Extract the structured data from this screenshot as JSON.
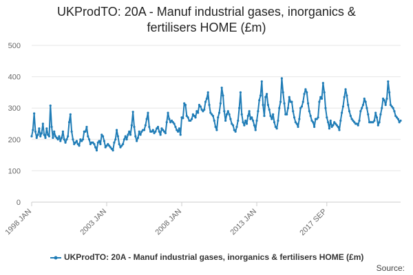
{
  "chart_data": {
    "type": "line",
    "title_lines": [
      "UKProdTO: 20A - Manuf industrial gases, inorganics &",
      "fertilisers HOME (£m)"
    ],
    "xlabel": "",
    "ylabel": "",
    "x_tick_labels": [
      "1998 JAN",
      "2003 JAN",
      "2008 JAN",
      "2013 JAN",
      "2017 SEP"
    ],
    "x_start": "1998-01",
    "x_end": "2017-09",
    "y_ticks": [
      0,
      100,
      200,
      300,
      400,
      500
    ],
    "ylim": [
      0,
      500
    ],
    "grid": true,
    "legend_position": "bottom",
    "series": [
      {
        "name": "UKProdTO: 20A - Manuf industrial gases, inorganics & fertilisers HOME (£m)",
        "color": "#1f7cb6",
        "values": [
          210,
          230,
          283,
          225,
          205,
          215,
          235,
          210,
          220,
          250,
          215,
          205,
          235,
          215,
          210,
          308,
          240,
          205,
          225,
          210,
          205,
          200,
          210,
          195,
          205,
          225,
          200,
          190,
          200,
          210,
          255,
          280,
          225,
          200,
          185,
          190,
          195,
          185,
          180,
          200,
          195,
          200,
          225,
          225,
          240,
          210,
          200,
          185,
          190,
          190,
          185,
          175,
          165,
          190,
          195,
          185,
          215,
          210,
          195,
          175,
          180,
          185,
          180,
          175,
          170,
          165,
          190,
          200,
          230,
          210,
          185,
          175,
          180,
          185,
          200,
          210,
          200,
          215,
          225,
          215,
          245,
          288,
          240,
          210,
          195,
          205,
          225,
          215,
          225,
          230,
          230,
          245,
          265,
          285,
          240,
          225,
          225,
          230,
          220,
          225,
          235,
          240,
          225,
          215,
          235,
          230,
          225,
          220,
          255,
          285,
          265,
          255,
          260,
          255,
          250,
          240,
          230,
          225,
          235,
          215,
          270,
          268,
          315,
          310,
          275,
          270,
          260,
          260,
          265,
          280,
          275,
          270,
          290,
          285,
          310,
          305,
          295,
          290,
          295,
          320,
          330,
          350,
          310,
          285,
          280,
          275,
          260,
          240,
          230,
          270,
          285,
          315,
          365,
          340,
          290,
          260,
          280,
          290,
          280,
          265,
          250,
          245,
          230,
          225,
          240,
          260,
          300,
          350,
          280,
          255,
          245,
          260,
          250,
          275,
          290,
          265,
          270,
          260,
          245,
          230,
          260,
          290,
          325,
          340,
          385,
          310,
          275,
          335,
          345,
          310,
          295,
          275,
          265,
          280,
          255,
          240,
          235,
          260,
          300,
          320,
          395,
          350,
          315,
          280,
          280,
          300,
          335,
          320,
          320,
          290,
          270,
          255,
          250,
          240,
          265,
          300,
          305,
          320,
          345,
          360,
          350,
          315,
          290,
          275,
          260,
          255,
          240,
          265,
          265,
          270,
          320,
          335,
          330,
          380,
          350,
          300,
          270,
          255,
          235,
          260,
          240,
          245,
          255,
          250,
          245,
          240,
          230,
          260,
          285,
          305,
          335,
          360,
          340,
          310,
          290,
          275,
          265,
          260,
          255,
          250,
          250,
          245,
          260,
          290,
          300,
          310,
          330,
          320,
          300,
          280,
          255,
          255,
          255,
          255,
          260,
          285,
          270,
          245,
          255,
          280,
          300,
          330,
          325,
          310,
          330,
          385,
          350,
          310,
          305,
          300,
          290,
          275,
          270,
          265,
          255,
          260
        ]
      }
    ]
  },
  "legend": {
    "label": "UKProdTO: 20A - Manuf industrial gases, inorganics & fertilisers HOME (£m)"
  },
  "source_label": "Source:"
}
